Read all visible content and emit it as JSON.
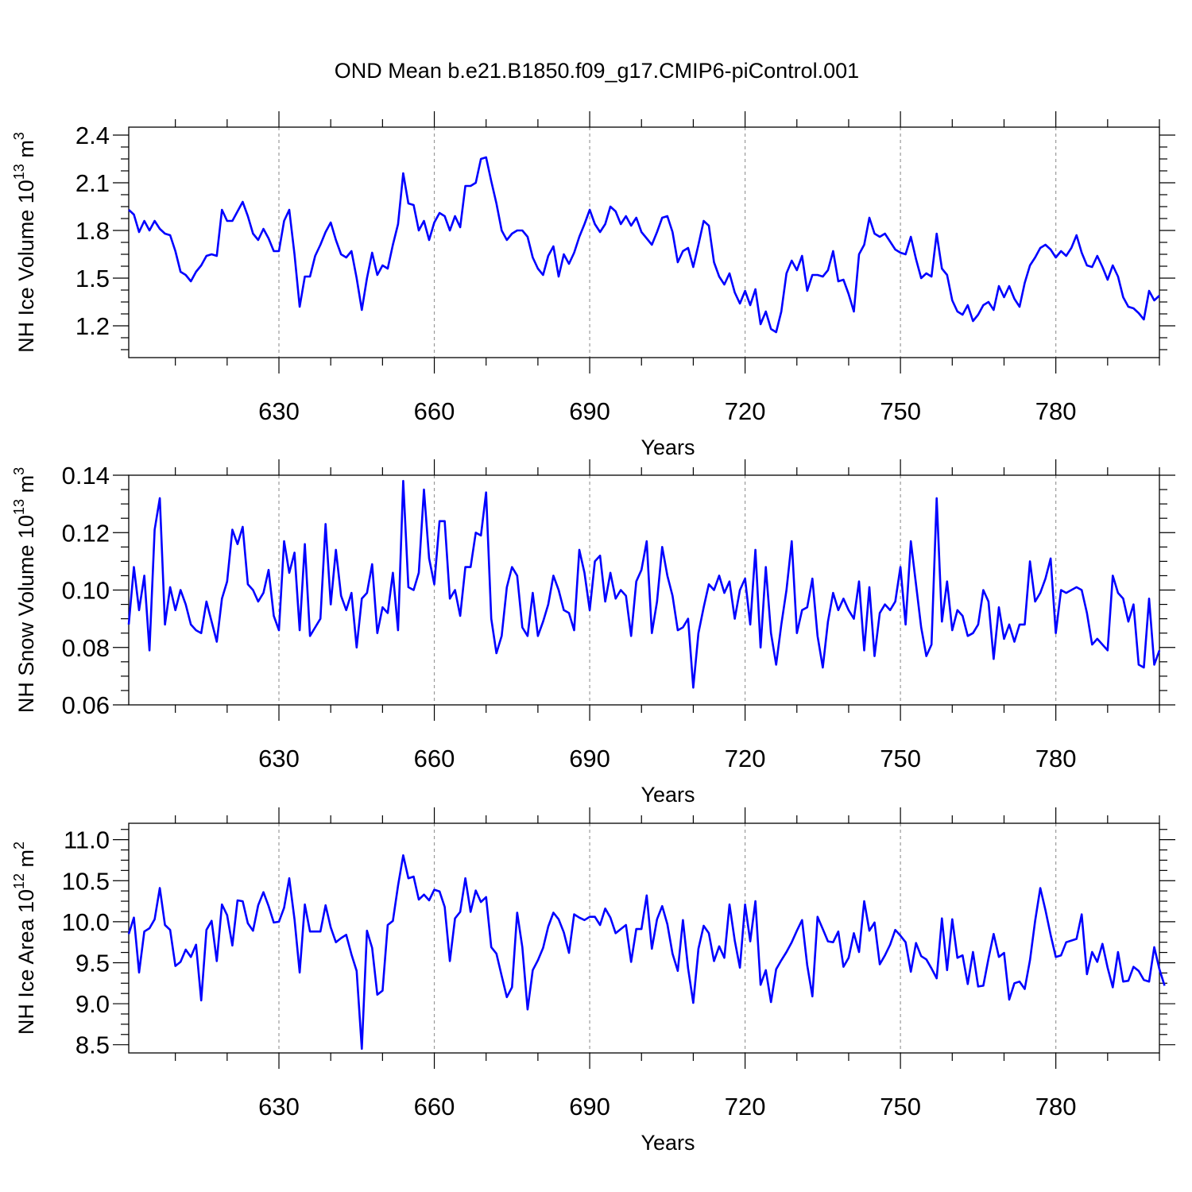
{
  "title": "OND Mean b.e21.B1850.f09_g17.CMIP6-piControl.001",
  "line_color": "#0000ff",
  "chart_data": [
    {
      "type": "line",
      "xlabel": "Years",
      "ylabel": "NH Ice Volume 10",
      "ylabel_exp": "13",
      "ylabel_unit": " m",
      "ylabel_unit_exp": "3",
      "xlim": [
        601,
        800
      ],
      "ylim": [
        1.0,
        2.45
      ],
      "xticks": [
        "630",
        "660",
        "690",
        "720",
        "750",
        "780"
      ],
      "xtick_values": [
        630,
        660,
        690,
        720,
        750,
        780
      ],
      "yticks": [
        "1.2",
        "1.5",
        "1.8",
        "2.1",
        "2.4"
      ],
      "ytick_values": [
        1.2,
        1.5,
        1.8,
        2.1,
        2.4
      ],
      "grid": "dashed vertical at x ticks",
      "x_start": 601,
      "values": [
        1.93,
        1.9,
        1.79,
        1.86,
        1.8,
        1.86,
        1.81,
        1.78,
        1.77,
        1.67,
        1.54,
        1.52,
        1.48,
        1.54,
        1.58,
        1.64,
        1.65,
        1.64,
        1.93,
        1.86,
        1.86,
        1.92,
        1.98,
        1.89,
        1.78,
        1.74,
        1.81,
        1.75,
        1.67,
        1.67,
        1.86,
        1.93,
        1.65,
        1.32,
        1.51,
        1.51,
        1.64,
        1.71,
        1.79,
        1.85,
        1.74,
        1.65,
        1.63,
        1.67,
        1.5,
        1.3,
        1.5,
        1.66,
        1.52,
        1.58,
        1.56,
        1.71,
        1.84,
        2.16,
        1.97,
        1.96,
        1.8,
        1.86,
        1.74,
        1.85,
        1.91,
        1.89,
        1.8,
        1.89,
        1.82,
        2.08,
        2.08,
        2.1,
        2.25,
        2.26,
        2.11,
        1.97,
        1.8,
        1.74,
        1.78,
        1.8,
        1.8,
        1.76,
        1.63,
        1.56,
        1.52,
        1.64,
        1.7,
        1.51,
        1.65,
        1.59,
        1.66,
        1.76,
        1.84,
        1.93,
        1.84,
        1.79,
        1.84,
        1.95,
        1.92,
        1.84,
        1.89,
        1.83,
        1.88,
        1.79,
        1.75,
        1.71,
        1.79,
        1.88,
        1.89,
        1.79,
        1.6,
        1.67,
        1.69,
        1.57,
        1.71,
        1.86,
        1.83,
        1.6,
        1.51,
        1.46,
        1.53,
        1.41,
        1.34,
        1.42,
        1.33,
        1.43,
        1.21,
        1.29,
        1.18,
        1.16,
        1.29,
        1.53,
        1.61,
        1.55,
        1.64,
        1.42,
        1.52,
        1.52,
        1.51,
        1.55,
        1.67,
        1.48,
        1.49,
        1.4,
        1.29,
        1.65,
        1.71,
        1.88,
        1.78,
        1.76,
        1.78,
        1.73,
        1.68,
        1.66,
        1.65,
        1.76,
        1.62,
        1.5,
        1.53,
        1.51,
        1.78,
        1.56,
        1.52,
        1.36,
        1.29,
        1.27,
        1.33,
        1.23,
        1.27,
        1.33,
        1.35,
        1.3,
        1.45,
        1.38,
        1.45,
        1.37,
        1.32,
        1.47,
        1.58,
        1.63,
        1.69,
        1.71,
        1.68,
        1.63,
        1.67,
        1.64,
        1.69,
        1.77,
        1.66,
        1.58,
        1.57,
        1.64,
        1.57,
        1.49,
        1.58,
        1.51,
        1.38,
        1.32,
        1.31,
        1.28,
        1.24,
        1.42,
        1.36,
        1.39
      ]
    },
    {
      "type": "line",
      "xlabel": "Years",
      "ylabel": "NH Snow Volume 10",
      "ylabel_exp": "13",
      "ylabel_unit": " m",
      "ylabel_unit_exp": "3",
      "xlim": [
        601,
        800
      ],
      "ylim": [
        0.06,
        0.14
      ],
      "xticks": [
        "630",
        "660",
        "690",
        "720",
        "750",
        "780"
      ],
      "xtick_values": [
        630,
        660,
        690,
        720,
        750,
        780
      ],
      "yticks": [
        "0.06",
        "0.08",
        "0.10",
        "0.12",
        "0.14"
      ],
      "ytick_values": [
        0.06,
        0.08,
        0.1,
        0.12,
        0.14
      ],
      "grid": "dashed vertical at x ticks",
      "x_start": 601,
      "values": [
        0.088,
        0.108,
        0.093,
        0.105,
        0.079,
        0.121,
        0.132,
        0.088,
        0.101,
        0.093,
        0.1,
        0.095,
        0.088,
        0.086,
        0.085,
        0.096,
        0.089,
        0.082,
        0.097,
        0.103,
        0.121,
        0.116,
        0.122,
        0.102,
        0.1,
        0.096,
        0.099,
        0.107,
        0.091,
        0.086,
        0.117,
        0.106,
        0.113,
        0.086,
        0.116,
        0.084,
        0.087,
        0.09,
        0.123,
        0.095,
        0.114,
        0.098,
        0.093,
        0.099,
        0.08,
        0.097,
        0.099,
        0.109,
        0.085,
        0.094,
        0.092,
        0.106,
        0.086,
        0.138,
        0.101,
        0.1,
        0.106,
        0.135,
        0.111,
        0.102,
        0.124,
        0.124,
        0.097,
        0.1,
        0.091,
        0.108,
        0.108,
        0.12,
        0.119,
        0.134,
        0.09,
        0.078,
        0.084,
        0.101,
        0.108,
        0.105,
        0.087,
        0.084,
        0.099,
        0.084,
        0.089,
        0.095,
        0.105,
        0.1,
        0.093,
        0.092,
        0.086,
        0.114,
        0.106,
        0.093,
        0.11,
        0.112,
        0.096,
        0.106,
        0.097,
        0.1,
        0.098,
        0.084,
        0.103,
        0.107,
        0.117,
        0.085,
        0.096,
        0.115,
        0.105,
        0.098,
        0.086,
        0.087,
        0.09,
        0.066,
        0.085,
        0.094,
        0.102,
        0.1,
        0.105,
        0.099,
        0.103,
        0.09,
        0.1,
        0.104,
        0.088,
        0.114,
        0.08,
        0.108,
        0.085,
        0.074,
        0.088,
        0.1,
        0.117,
        0.085,
        0.093,
        0.094,
        0.104,
        0.084,
        0.073,
        0.089,
        0.099,
        0.093,
        0.097,
        0.093,
        0.09,
        0.103,
        0.079,
        0.101,
        0.077,
        0.092,
        0.095,
        0.093,
        0.096,
        0.108,
        0.088,
        0.117,
        0.102,
        0.087,
        0.077,
        0.081,
        0.132,
        0.089,
        0.103,
        0.086,
        0.093,
        0.091,
        0.084,
        0.085,
        0.088,
        0.1,
        0.096,
        0.076,
        0.094,
        0.083,
        0.088,
        0.082,
        0.088,
        0.088,
        0.11,
        0.096,
        0.099,
        0.104,
        0.111,
        0.085,
        0.1,
        0.099,
        0.1,
        0.101,
        0.1,
        0.092,
        0.081,
        0.083,
        0.081,
        0.079,
        0.105,
        0.099,
        0.097,
        0.089,
        0.095,
        0.074,
        0.073,
        0.097,
        0.074,
        0.079
      ]
    },
    {
      "type": "line",
      "xlabel": "Years",
      "ylabel": "NH Ice Area 10",
      "ylabel_exp": "12",
      "ylabel_unit": " m",
      "ylabel_unit_exp": "2",
      "xlim": [
        601,
        800
      ],
      "ylim": [
        8.4,
        11.2
      ],
      "xticks": [
        "630",
        "660",
        "690",
        "720",
        "750",
        "780"
      ],
      "xtick_values": [
        630,
        660,
        690,
        720,
        750,
        780
      ],
      "yticks": [
        "8.5",
        "9.0",
        "9.5",
        "10.0",
        "10.5",
        "11.0"
      ],
      "ytick_values": [
        8.5,
        9.0,
        9.5,
        10.0,
        10.5,
        11.0
      ],
      "grid": "dashed vertical at x ticks",
      "x_start": 601,
      "values": [
        9.85,
        10.05,
        9.38,
        9.88,
        9.92,
        10.03,
        10.41,
        9.96,
        9.9,
        9.46,
        9.51,
        9.66,
        9.57,
        9.72,
        9.04,
        9.9,
        10.01,
        9.52,
        10.21,
        10.08,
        9.71,
        10.26,
        10.25,
        9.98,
        9.89,
        10.2,
        10.36,
        10.19,
        9.99,
        10.0,
        10.17,
        10.53,
        10.03,
        9.38,
        10.21,
        9.88,
        9.88,
        9.88,
        10.2,
        9.93,
        9.75,
        9.8,
        9.84,
        9.6,
        9.4,
        8.45,
        9.89,
        9.68,
        9.11,
        9.16,
        9.96,
        10.01,
        10.44,
        10.81,
        10.53,
        10.55,
        10.27,
        10.33,
        10.26,
        10.39,
        10.37,
        10.18,
        9.52,
        10.04,
        10.12,
        10.53,
        10.12,
        10.38,
        10.24,
        10.3,
        9.69,
        9.61,
        9.34,
        9.08,
        9.2,
        10.11,
        9.69,
        8.93,
        9.41,
        9.53,
        9.68,
        9.94,
        10.11,
        10.03,
        9.87,
        9.62,
        10.09,
        10.05,
        10.02,
        10.06,
        10.06,
        9.96,
        10.16,
        10.05,
        9.86,
        9.91,
        9.96,
        9.51,
        9.91,
        9.91,
        10.32,
        9.67,
        10.03,
        10.19,
        9.97,
        9.61,
        9.4,
        10.02,
        9.43,
        9.01,
        9.67,
        9.95,
        9.86,
        9.52,
        9.7,
        9.56,
        10.21,
        9.77,
        9.44,
        10.21,
        9.76,
        10.25,
        9.23,
        9.41,
        9.02,
        9.42,
        9.53,
        9.63,
        9.75,
        9.89,
        10.02,
        9.47,
        9.09,
        10.06,
        9.91,
        9.76,
        9.75,
        9.88,
        9.45,
        9.56,
        9.86,
        9.63,
        10.25,
        9.89,
        9.99,
        9.48,
        9.59,
        9.72,
        9.9,
        9.83,
        9.75,
        9.39,
        9.74,
        9.58,
        9.54,
        9.43,
        9.31,
        10.04,
        9.41,
        10.03,
        9.56,
        9.59,
        9.24,
        9.63,
        9.21,
        9.22,
        9.55,
        9.85,
        9.57,
        9.62,
        9.05,
        9.25,
        9.27,
        9.18,
        9.53,
        10.01,
        10.41,
        10.14,
        9.84,
        9.57,
        9.59,
        9.75,
        9.77,
        9.79,
        10.09,
        9.36,
        9.63,
        9.51,
        9.73,
        9.44,
        9.2,
        9.63,
        9.27,
        9.28,
        9.45,
        9.4,
        9.29,
        9.27,
        9.69,
        9.42,
        9.22
      ]
    }
  ]
}
